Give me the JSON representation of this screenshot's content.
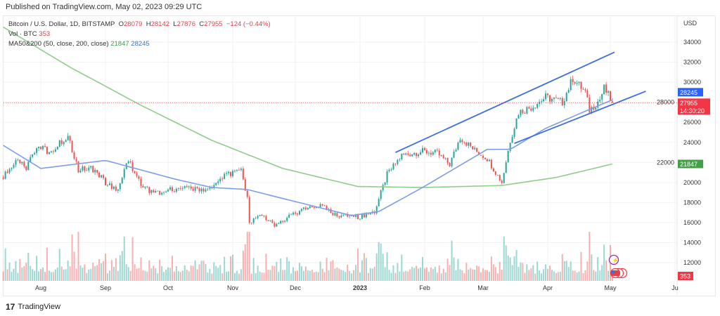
{
  "published": "Published on TradingView.com, May 02, 2023 09:29 UTC",
  "legend": {
    "symbol": "Bitcoin / U.S. Dollar, 1D, BITSTAMP",
    "o_label": "O",
    "o": "28079",
    "h_label": "H",
    "h": "28142",
    "l_label": "L",
    "l": "27876",
    "c_label": "C",
    "c": "27955",
    "change": "−124 (−0.44%)",
    "vol_label": "Vol · BTC",
    "vol": "353",
    "ma_label": "MA50&200 (50, close, 200, close)",
    "ma200": "21847",
    "ma50": "28245"
  },
  "logo_text": "TradingView",
  "colors": {
    "up": "#26a69a",
    "down": "#ef5350",
    "ma50": "#7b9ee8",
    "ma200": "#8fce8a",
    "channel": "#3d6ee0",
    "badge_blue": "#2962ff",
    "badge_red": "#f23645",
    "badge_green": "#43a047"
  },
  "badges": {
    "ma50": "28245",
    "price": "27955",
    "countdown": "14:30:20",
    "ma200": "21847",
    "volume": "353"
  },
  "chart_data": {
    "type": "candlestick",
    "currency": "USD",
    "ylim": [
      11000,
      35500
    ],
    "y_ticks": [
      "34000",
      "32000",
      "30000",
      "28000",
      "26000",
      "24000",
      "22000",
      "20000",
      "18000",
      "16000",
      "14000",
      "12000"
    ],
    "x_ticks": [
      [
        "2022-08-01",
        "Aug"
      ],
      [
        "2022-09-01",
        "Sep"
      ],
      [
        "2022-10-01",
        "Oct"
      ],
      [
        "2022-11-01",
        "Nov"
      ],
      [
        "2022-12-01",
        "Dec"
      ],
      [
        "2023-01-01",
        "2023"
      ],
      [
        "2023-02-01",
        "Feb"
      ],
      [
        "2023-03-01",
        "Mar"
      ],
      [
        "2023-04-01",
        "Apr"
      ],
      [
        "2023-05-01",
        "May"
      ],
      [
        "2023-06-01",
        "Ju"
      ]
    ],
    "xlim": [
      "2022-07-14",
      "2023-06-10"
    ],
    "close_anchors": [
      [
        "2022-07-14",
        20500
      ],
      [
        "2022-07-20",
        22200
      ],
      [
        "2022-07-25",
        21500
      ],
      [
        "2022-07-30",
        23700
      ],
      [
        "2022-08-05",
        23000
      ],
      [
        "2022-08-10",
        23900
      ],
      [
        "2022-08-14",
        24600
      ],
      [
        "2022-08-19",
        21200
      ],
      [
        "2022-08-25",
        21500
      ],
      [
        "2022-09-01",
        20000
      ],
      [
        "2022-09-07",
        19300
      ],
      [
        "2022-09-12",
        22200
      ],
      [
        "2022-09-19",
        19500
      ],
      [
        "2022-09-25",
        18900
      ],
      [
        "2022-10-01",
        19300
      ],
      [
        "2022-10-10",
        19400
      ],
      [
        "2022-10-20",
        19100
      ],
      [
        "2022-10-28",
        20600
      ],
      [
        "2022-11-05",
        21200
      ],
      [
        "2022-11-08",
        18500
      ],
      [
        "2022-11-09",
        16000
      ],
      [
        "2022-11-15",
        16700
      ],
      [
        "2022-11-21",
        15800
      ],
      [
        "2022-12-01",
        17000
      ],
      [
        "2022-12-14",
        17800
      ],
      [
        "2022-12-20",
        16800
      ],
      [
        "2022-12-31",
        16550
      ],
      [
        "2023-01-08",
        17100
      ],
      [
        "2023-01-14",
        20800
      ],
      [
        "2023-01-21",
        22700
      ],
      [
        "2023-01-31",
        23100
      ],
      [
        "2023-02-07",
        22900
      ],
      [
        "2023-02-13",
        21800
      ],
      [
        "2023-02-18",
        24500
      ],
      [
        "2023-02-25",
        23200
      ],
      [
        "2023-03-03",
        22400
      ],
      [
        "2023-03-10",
        20000
      ],
      [
        "2023-03-14",
        24200
      ],
      [
        "2023-03-18",
        27000
      ],
      [
        "2023-03-24",
        27500
      ],
      [
        "2023-03-31",
        28500
      ],
      [
        "2023-04-08",
        28000
      ],
      [
        "2023-04-13",
        30400
      ],
      [
        "2023-04-19",
        29000
      ],
      [
        "2023-04-21",
        27200
      ],
      [
        "2023-04-26",
        28300
      ],
      [
        "2023-04-28",
        29400
      ],
      [
        "2023-05-02",
        27955
      ]
    ],
    "ma200": [
      [
        "2022-07-14",
        35500
      ],
      [
        "2022-08-15",
        31500
      ],
      [
        "2022-09-18",
        27700
      ],
      [
        "2022-10-22",
        24200
      ],
      [
        "2022-11-25",
        21400
      ],
      [
        "2022-12-31",
        19600
      ],
      [
        "2023-01-31",
        19500
      ],
      [
        "2023-03-10",
        19700
      ],
      [
        "2023-04-05",
        20500
      ],
      [
        "2023-05-02",
        21847
      ]
    ],
    "ma50": [
      [
        "2022-07-14",
        23700
      ],
      [
        "2022-08-01",
        21400
      ],
      [
        "2022-09-01",
        22200
      ],
      [
        "2022-10-05",
        20300
      ],
      [
        "2022-10-22",
        19500
      ],
      [
        "2022-11-08",
        19300
      ],
      [
        "2022-11-25",
        18400
      ],
      [
        "2022-12-28",
        16700
      ],
      [
        "2023-01-10",
        17100
      ],
      [
        "2023-01-31",
        19500
      ],
      [
        "2023-03-03",
        23300
      ],
      [
        "2023-03-14",
        23300
      ],
      [
        "2023-03-31",
        25400
      ],
      [
        "2023-04-20",
        27200
      ],
      [
        "2023-05-02",
        28245
      ]
    ],
    "channel_upper": [
      [
        "2023-01-18",
        23000
      ],
      [
        "2023-05-03",
        33000
      ]
    ],
    "channel_lower": [
      [
        "2023-03-16",
        23900
      ],
      [
        "2023-05-18",
        29100
      ]
    ],
    "last_volume": 353
  }
}
